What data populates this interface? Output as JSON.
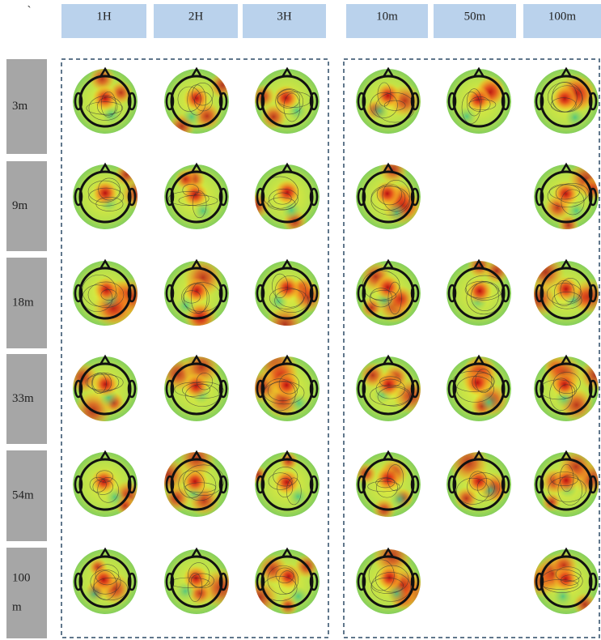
{
  "corner": "`",
  "columns": [
    "1H",
    "2H",
    "3H",
    "10m",
    "50m",
    "100m"
  ],
  "rows": [
    [
      "3m"
    ],
    [
      "9m"
    ],
    [
      "18m"
    ],
    [
      "33m"
    ],
    [
      "54m"
    ],
    [
      "100",
      "m"
    ]
  ]
}
